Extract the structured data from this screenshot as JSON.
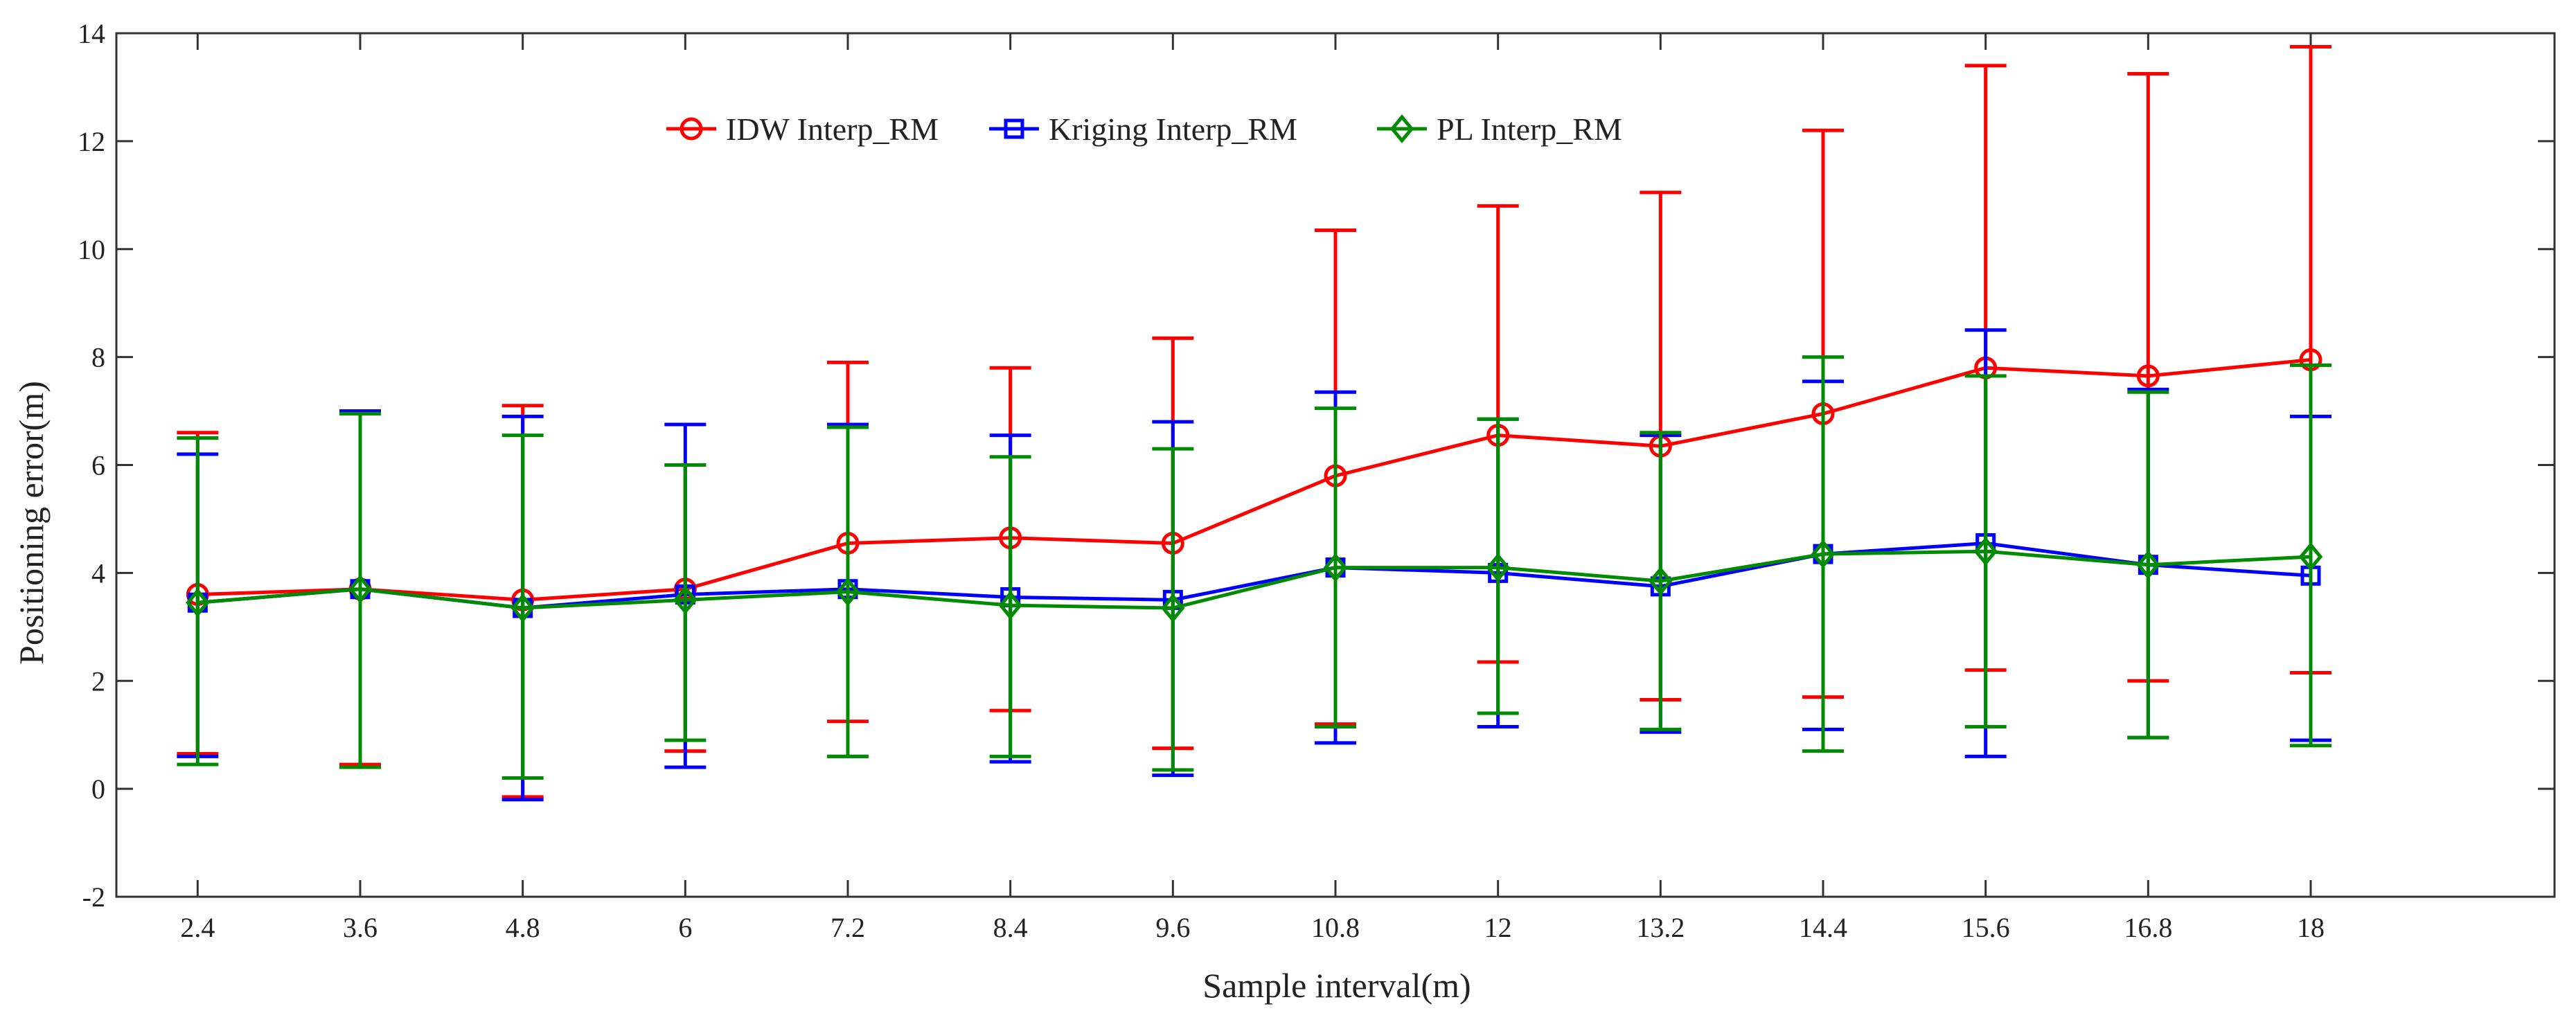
{
  "chart_data": {
    "type": "line",
    "title": "",
    "xlabel": "Sample interval(m)",
    "ylabel": "Positioning error(m)",
    "categories": [
      "2.4",
      "3.6",
      "4.8",
      "6",
      "7.2",
      "8.4",
      "9.6",
      "10.8",
      "12",
      "13.2",
      "14.4",
      "15.6",
      "16.8",
      "18"
    ],
    "yticks": [
      "-2",
      "0",
      "2",
      "4",
      "6",
      "8",
      "10",
      "12",
      "14"
    ],
    "ylim": [
      -2,
      14
    ],
    "xlim": [
      0.5,
      15.5
    ],
    "grid": false,
    "legend_position": "top-center",
    "series": [
      {
        "name": "IDW Interp_RM",
        "color": "#ff0000",
        "marker": "circle",
        "values": [
          3.6,
          3.7,
          3.5,
          3.7,
          4.55,
          4.65,
          4.55,
          5.8,
          6.55,
          6.35,
          6.95,
          7.8,
          7.65,
          7.95
        ],
        "err_low": [
          0.65,
          0.45,
          -0.15,
          0.7,
          1.25,
          1.45,
          0.75,
          1.2,
          2.35,
          1.65,
          1.7,
          2.2,
          2.0,
          2.15
        ],
        "err_high": [
          6.6,
          7.0,
          7.1,
          6.0,
          7.9,
          7.8,
          8.35,
          10.35,
          10.8,
          11.05,
          12.2,
          13.4,
          13.25,
          13.75
        ]
      },
      {
        "name": "Kriging Interp_RM",
        "color": "#0000ff",
        "marker": "square",
        "values": [
          3.45,
          3.7,
          3.35,
          3.6,
          3.7,
          3.55,
          3.5,
          4.1,
          4.0,
          3.75,
          4.35,
          4.55,
          4.15,
          3.95
        ],
        "err_low": [
          0.6,
          0.4,
          -0.2,
          0.4,
          0.6,
          0.5,
          0.25,
          0.85,
          1.15,
          1.05,
          1.1,
          0.6,
          0.95,
          0.9
        ],
        "err_high": [
          6.2,
          7.0,
          6.9,
          6.75,
          6.75,
          6.55,
          6.8,
          7.35,
          6.85,
          6.55,
          7.55,
          8.5,
          7.4,
          6.9
        ]
      },
      {
        "name": "PL Interp_RM",
        "color": "#008c00",
        "marker": "diamond",
        "values": [
          3.45,
          3.7,
          3.35,
          3.5,
          3.65,
          3.4,
          3.35,
          4.1,
          4.1,
          3.85,
          4.35,
          4.4,
          4.15,
          4.3
        ],
        "err_low": [
          0.45,
          0.4,
          0.2,
          0.9,
          0.6,
          0.6,
          0.35,
          1.15,
          1.4,
          1.1,
          0.7,
          1.15,
          0.95,
          0.8
        ],
        "err_high": [
          6.5,
          6.95,
          6.55,
          6.0,
          6.7,
          6.15,
          6.3,
          7.05,
          6.85,
          6.6,
          8.0,
          7.65,
          7.35,
          7.85
        ]
      }
    ]
  }
}
